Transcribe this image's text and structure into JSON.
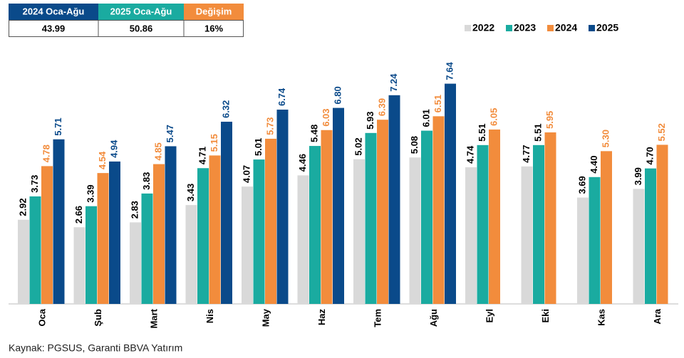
{
  "summary": {
    "headers": [
      "2024 Oca-Ağu",
      "2025 Oca-Ağu",
      "Değişim"
    ],
    "cells": [
      "43.99",
      "50.86",
      "16%"
    ]
  },
  "chart_data": {
    "type": "bar",
    "categories": [
      "Oca",
      "Şub",
      "Mart",
      "Nis",
      "May",
      "Haz",
      "Tem",
      "Ağu",
      "Eyl",
      "Eki",
      "Kas",
      "Ara"
    ],
    "series": [
      {
        "name": "2022",
        "color": "#d9d9d9",
        "label_color": "#000000",
        "values": [
          2.92,
          2.66,
          2.83,
          3.43,
          4.07,
          4.46,
          5.02,
          5.08,
          4.74,
          4.77,
          3.69,
          3.99
        ],
        "value_labels": [
          "2.92",
          "2.66",
          "2.83",
          "3.43",
          "4.07",
          "4.46",
          "5.02",
          "5.08",
          "4.74",
          "4.77",
          "3.69",
          "3.99"
        ]
      },
      {
        "name": "2023",
        "color": "#1aaba0",
        "label_color": "#000000",
        "values": [
          3.73,
          3.39,
          3.83,
          4.71,
          5.01,
          5.48,
          5.93,
          6.01,
          5.51,
          5.51,
          4.4,
          4.7
        ],
        "value_labels": [
          "3.73",
          "3.39",
          "3.83",
          "4.71",
          "5.01",
          "5.48",
          "5.93",
          "6.01",
          "5.51",
          "5.51",
          "4.40",
          "4.70"
        ]
      },
      {
        "name": "2024",
        "color": "#f28c3c",
        "label_color": "#f28c3c",
        "values": [
          4.78,
          4.54,
          4.85,
          5.15,
          5.73,
          6.03,
          6.39,
          6.51,
          6.05,
          5.95,
          5.3,
          5.52
        ],
        "value_labels": [
          "4.78",
          "4.54",
          "4.85",
          "5.15",
          "5.73",
          "6.03",
          "6.39",
          "6.51",
          "6.05",
          "5.95",
          "5.30",
          "5.52"
        ]
      },
      {
        "name": "2025",
        "color": "#0a4a8a",
        "label_color": "#0a4a8a",
        "values": [
          5.71,
          4.94,
          5.47,
          6.32,
          6.74,
          6.8,
          7.24,
          7.64,
          null,
          null,
          null,
          null
        ],
        "value_labels": [
          "5.71",
          "4.94",
          "5.47",
          "6.32",
          "6.74",
          "6.80",
          "7.24",
          "7.64",
          null,
          null,
          null,
          null
        ]
      }
    ],
    "source": "Kaynak: PGSUS, Garanti BBVA Yatırım"
  }
}
